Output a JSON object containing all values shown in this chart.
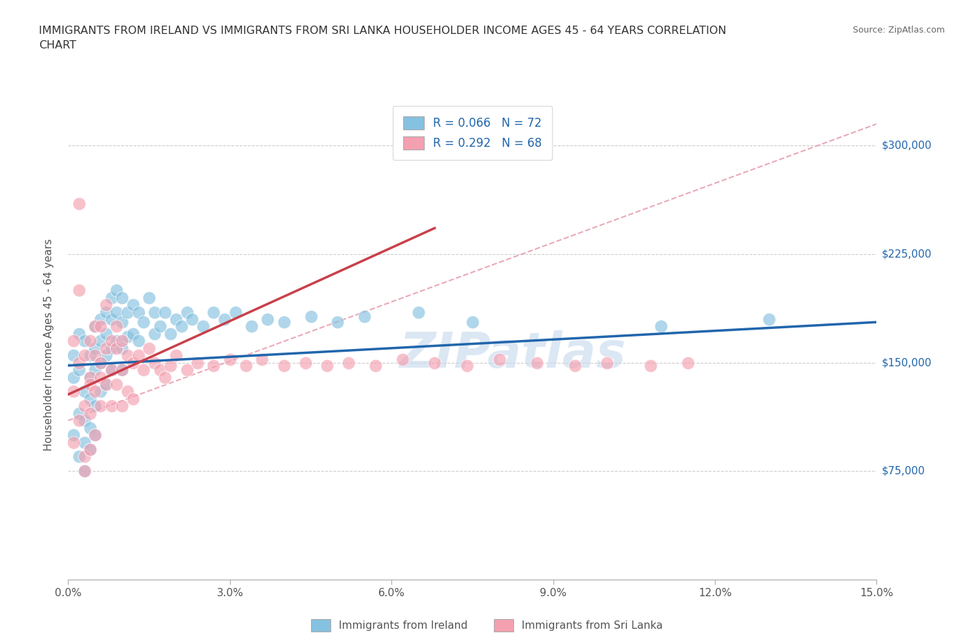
{
  "title": "IMMIGRANTS FROM IRELAND VS IMMIGRANTS FROM SRI LANKA HOUSEHOLDER INCOME AGES 45 - 64 YEARS CORRELATION\nCHART",
  "source_text": "Source: ZipAtlas.com",
  "ylabel": "Householder Income Ages 45 - 64 years",
  "xlim": [
    0.0,
    0.15
  ],
  "ylim": [
    0,
    325000
  ],
  "xticks": [
    0.0,
    0.03,
    0.06,
    0.09,
    0.12,
    0.15
  ],
  "xtick_labels": [
    "0.0%",
    "3.0%",
    "6.0%",
    "9.0%",
    "12.0%",
    "15.0%"
  ],
  "ireland_color": "#85c1e0",
  "srilanka_color": "#f4a0b0",
  "ireland_line_color": "#2166ac",
  "srilanka_line_color": "#c9404a",
  "diag_color": "#e8a0b0",
  "ireland_R": 0.066,
  "ireland_N": 72,
  "srilanka_R": 0.292,
  "srilanka_N": 68,
  "ireland_label": "Immigrants from Ireland",
  "srilanka_label": "Immigrants from Sri Lanka",
  "watermark": "ZIPatlas",
  "watermark_color": "#c5d8ed",
  "ytick_vals": [
    75000,
    150000,
    225000,
    300000
  ],
  "ytick_labels": [
    "$75,000",
    "$150,000",
    "$225,000",
    "$300,000"
  ],
  "grid_color": "#cccccc",
  "ireland_x": [
    0.001,
    0.001,
    0.001,
    0.002,
    0.002,
    0.002,
    0.002,
    0.003,
    0.003,
    0.003,
    0.003,
    0.003,
    0.004,
    0.004,
    0.004,
    0.004,
    0.004,
    0.005,
    0.005,
    0.005,
    0.005,
    0.005,
    0.006,
    0.006,
    0.006,
    0.006,
    0.007,
    0.007,
    0.007,
    0.007,
    0.008,
    0.008,
    0.008,
    0.008,
    0.009,
    0.009,
    0.009,
    0.01,
    0.01,
    0.01,
    0.01,
    0.011,
    0.011,
    0.012,
    0.012,
    0.013,
    0.013,
    0.014,
    0.015,
    0.016,
    0.016,
    0.017,
    0.018,
    0.019,
    0.02,
    0.021,
    0.022,
    0.023,
    0.025,
    0.027,
    0.029,
    0.031,
    0.034,
    0.037,
    0.04,
    0.045,
    0.05,
    0.055,
    0.065,
    0.075,
    0.11,
    0.13
  ],
  "ireland_y": [
    155000,
    140000,
    100000,
    170000,
    145000,
    115000,
    85000,
    165000,
    130000,
    110000,
    95000,
    75000,
    155000,
    140000,
    125000,
    105000,
    90000,
    175000,
    160000,
    145000,
    120000,
    100000,
    180000,
    165000,
    150000,
    130000,
    185000,
    170000,
    155000,
    135000,
    195000,
    180000,
    160000,
    145000,
    200000,
    185000,
    165000,
    195000,
    178000,
    160000,
    145000,
    185000,
    168000,
    190000,
    170000,
    185000,
    165000,
    178000,
    195000,
    185000,
    170000,
    175000,
    185000,
    170000,
    180000,
    175000,
    185000,
    180000,
    175000,
    185000,
    180000,
    185000,
    175000,
    180000,
    178000,
    182000,
    178000,
    182000,
    185000,
    178000,
    175000,
    180000
  ],
  "srilanka_x": [
    0.001,
    0.001,
    0.001,
    0.002,
    0.002,
    0.002,
    0.002,
    0.003,
    0.003,
    0.003,
    0.003,
    0.004,
    0.004,
    0.004,
    0.004,
    0.004,
    0.005,
    0.005,
    0.005,
    0.005,
    0.006,
    0.006,
    0.006,
    0.006,
    0.007,
    0.007,
    0.007,
    0.008,
    0.008,
    0.008,
    0.009,
    0.009,
    0.009,
    0.01,
    0.01,
    0.01,
    0.011,
    0.011,
    0.012,
    0.012,
    0.013,
    0.014,
    0.015,
    0.016,
    0.017,
    0.018,
    0.019,
    0.02,
    0.022,
    0.024,
    0.027,
    0.03,
    0.033,
    0.036,
    0.04,
    0.044,
    0.048,
    0.052,
    0.057,
    0.062,
    0.068,
    0.074,
    0.08,
    0.087,
    0.094,
    0.1,
    0.108,
    0.115
  ],
  "srilanka_y": [
    95000,
    130000,
    165000,
    110000,
    150000,
    200000,
    260000,
    120000,
    155000,
    85000,
    75000,
    140000,
    115000,
    90000,
    165000,
    135000,
    155000,
    130000,
    100000,
    175000,
    150000,
    120000,
    175000,
    140000,
    160000,
    135000,
    190000,
    145000,
    120000,
    165000,
    160000,
    135000,
    175000,
    145000,
    120000,
    165000,
    155000,
    130000,
    150000,
    125000,
    155000,
    145000,
    160000,
    150000,
    145000,
    140000,
    148000,
    155000,
    145000,
    150000,
    148000,
    152000,
    148000,
    152000,
    148000,
    150000,
    148000,
    150000,
    148000,
    152000,
    150000,
    148000,
    152000,
    150000,
    148000,
    150000,
    148000,
    150000
  ]
}
